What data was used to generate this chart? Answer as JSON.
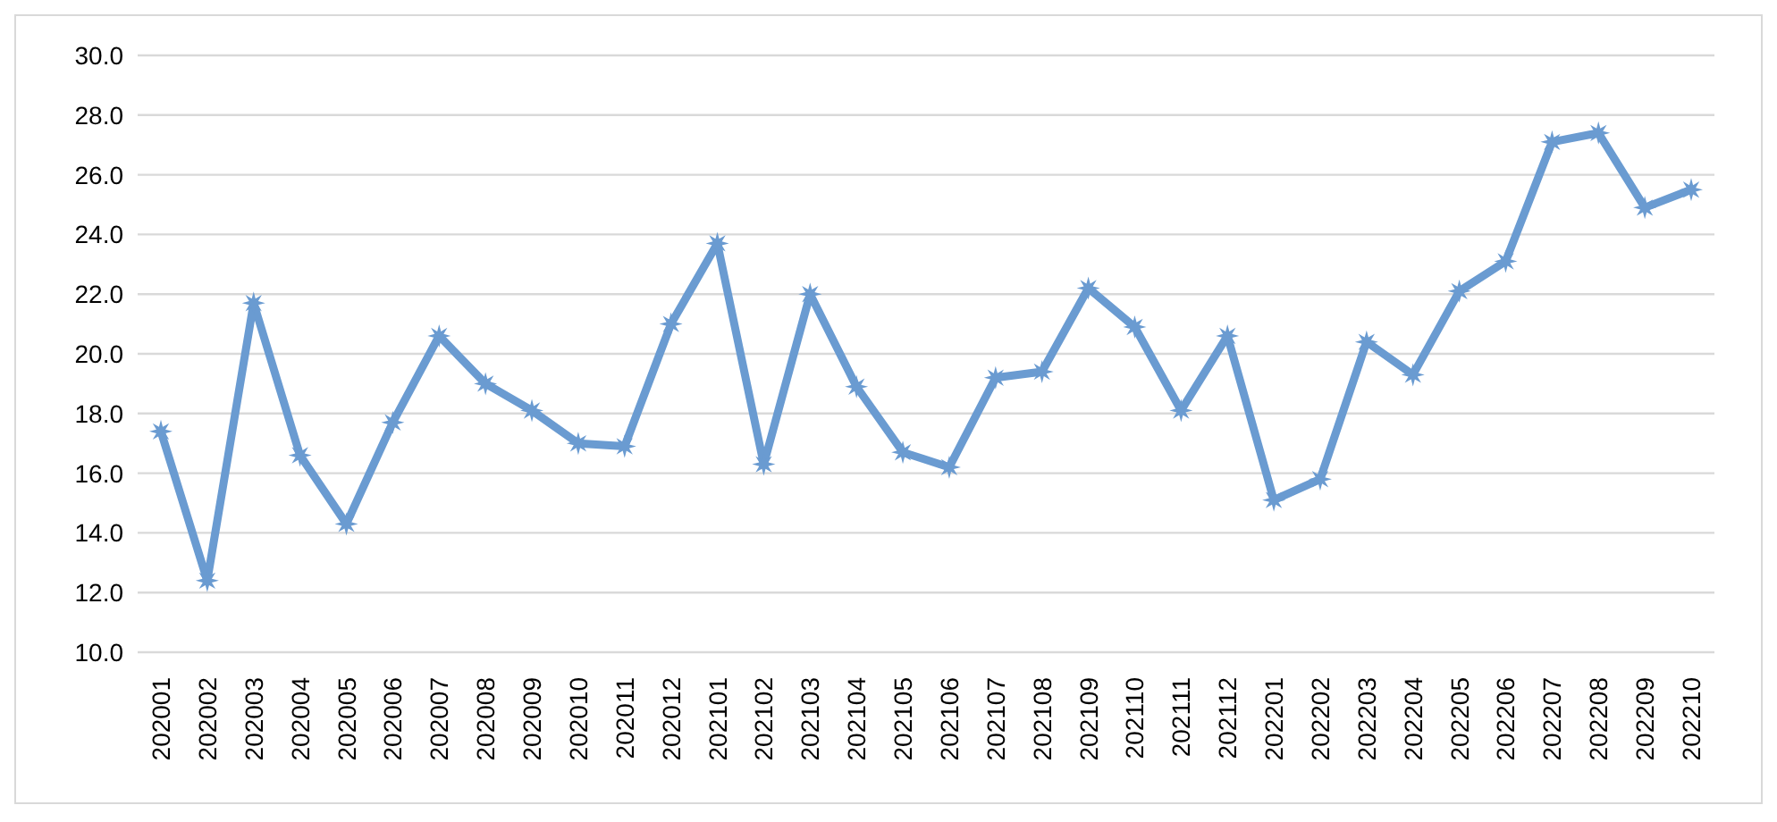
{
  "chart_data": {
    "type": "line",
    "categories": [
      "202001",
      "202002",
      "202003",
      "202004",
      "202005",
      "202006",
      "202007",
      "202008",
      "202009",
      "202010",
      "202011",
      "202012",
      "202101",
      "202102",
      "202103",
      "202104",
      "202105",
      "202106",
      "202107",
      "202108",
      "202109",
      "202110",
      "202111",
      "202112",
      "202201",
      "202202",
      "202203",
      "202204",
      "202205",
      "202206",
      "202207",
      "202208",
      "202209",
      "202210"
    ],
    "series": [
      {
        "color": "#6a9bd1",
        "values": [
          17.4,
          12.4,
          21.7,
          16.6,
          14.3,
          17.7,
          20.6,
          19.0,
          18.1,
          17.0,
          16.9,
          21.0,
          23.7,
          16.3,
          22.0,
          18.9,
          16.7,
          16.2,
          19.2,
          19.4,
          22.2,
          20.9,
          18.1,
          20.6,
          15.1,
          15.8,
          20.4,
          19.3,
          22.1,
          23.1,
          27.1,
          27.4,
          24.9,
          25.5
        ]
      }
    ],
    "ylim": [
      10,
      30
    ],
    "yticks": [
      {
        "value": 10,
        "label": "10.0"
      },
      {
        "value": 12,
        "label": "12.0"
      },
      {
        "value": 14,
        "label": "14.0"
      },
      {
        "value": 16,
        "label": "16.0"
      },
      {
        "value": 18,
        "label": "18.0"
      },
      {
        "value": 20,
        "label": "20.0"
      },
      {
        "value": 22,
        "label": "22.0"
      },
      {
        "value": 24,
        "label": "24.0"
      },
      {
        "value": 26,
        "label": "26.0"
      },
      {
        "value": 28,
        "label": "28.0"
      },
      {
        "value": 30,
        "label": "30.0"
      }
    ],
    "grid": "y",
    "marker": "star",
    "line_style": "solid"
  }
}
